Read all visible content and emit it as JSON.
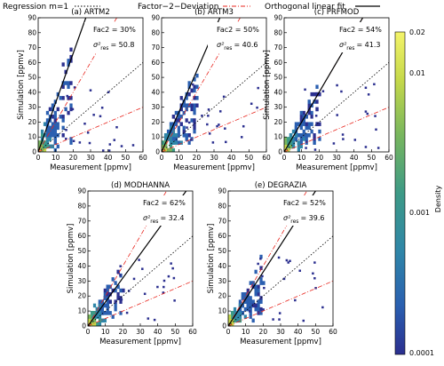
{
  "legend": {
    "items": [
      {
        "label": "Regression m=1",
        "style": "dotted",
        "color": "#000000"
      },
      {
        "label": "Factor−2−Deviation",
        "style": "dashdot",
        "color": "#e8241c"
      },
      {
        "label": "Orthogonal linear fit",
        "style": "solid",
        "color": "#000000"
      }
    ]
  },
  "colorbar": {
    "label": "Density",
    "ticks": [
      "0.02",
      "0.01",
      "0.001",
      "0.0001"
    ],
    "tick_values": [
      0.02,
      0.01,
      0.001,
      0.0001
    ],
    "range": [
      0.0001,
      0.02
    ],
    "scale": "log"
  },
  "chart_data": [
    {
      "type": "heatmap",
      "title": "(a) ARTM2",
      "fac2_text": "Fac2 = 30%",
      "sigma_label": "σ²",
      "sigma_sub": "res",
      "sigma_text": "= 50.8",
      "xlabel": "Measurement [ppmv]",
      "ylabel": "Simulation [ppmv]",
      "xlim": [
        0,
        60
      ],
      "ylim": [
        0,
        90
      ],
      "xticks": [
        0,
        10,
        20,
        30,
        40,
        50,
        60
      ],
      "yticks": [
        0,
        10,
        20,
        30,
        40,
        50,
        60,
        70,
        80,
        90
      ],
      "fit_slope": 3.3
    },
    {
      "type": "heatmap",
      "title": "(b) ARTM3",
      "fac2_text": "Fac2 = 50%",
      "sigma_label": "σ²",
      "sigma_sub": "res",
      "sigma_text": "= 40.6",
      "xlabel": "Measurement [ppmv]",
      "ylabel": "",
      "xlim": [
        0,
        60
      ],
      "ylim": [
        0,
        90
      ],
      "xticks": [
        0,
        10,
        20,
        30,
        40,
        50,
        60
      ],
      "yticks": [
        0,
        10,
        20,
        30,
        40,
        50,
        60,
        70,
        80,
        90
      ],
      "fit_slope": 2.7
    },
    {
      "type": "heatmap",
      "title": "(c) PRFMOD",
      "fac2_text": "Fac2 = 54%",
      "sigma_label": "σ²",
      "sigma_sub": "res",
      "sigma_text": "= 41.3",
      "xlabel": "Measurement [ppmv]",
      "ylabel": "Simulation [ppmv]",
      "xlim": [
        0,
        60
      ],
      "ylim": [
        0,
        90
      ],
      "xticks": [
        0,
        10,
        20,
        30,
        40,
        50,
        60
      ],
      "yticks": [
        0,
        10,
        20,
        30,
        40,
        50,
        60,
        70,
        80,
        90
      ],
      "fit_slope": 2.0
    },
    {
      "type": "heatmap",
      "title": "(d) MODHANNA",
      "fac2_text": "Fac2 = 62%",
      "sigma_label": "σ²",
      "sigma_sub": "res",
      "sigma_text": "= 32.4",
      "xlabel": "Measurement [ppmv]",
      "ylabel": "Simulation [ppmv]",
      "xlim": [
        0,
        60
      ],
      "ylim": [
        0,
        90
      ],
      "xticks": [
        0,
        10,
        20,
        30,
        40,
        50,
        60
      ],
      "yticks": [
        0,
        10,
        20,
        30,
        40,
        50,
        60,
        70,
        80,
        90
      ],
      "fit_slope": 1.6
    },
    {
      "type": "heatmap",
      "title": "(e) DEGRAZIA",
      "fac2_text": "Fac2 = 52%",
      "sigma_label": "σ²",
      "sigma_sub": "res",
      "sigma_text": "= 39.6",
      "xlabel": "Measurement [ppmv]",
      "ylabel": "Simulation [ppmv]",
      "xlim": [
        0,
        60
      ],
      "ylim": [
        0,
        90
      ],
      "xticks": [
        0,
        10,
        20,
        30,
        40,
        50,
        60
      ],
      "yticks": [
        0,
        10,
        20,
        30,
        40,
        50,
        60,
        70,
        80,
        90
      ],
      "fit_slope": 1.8
    }
  ]
}
